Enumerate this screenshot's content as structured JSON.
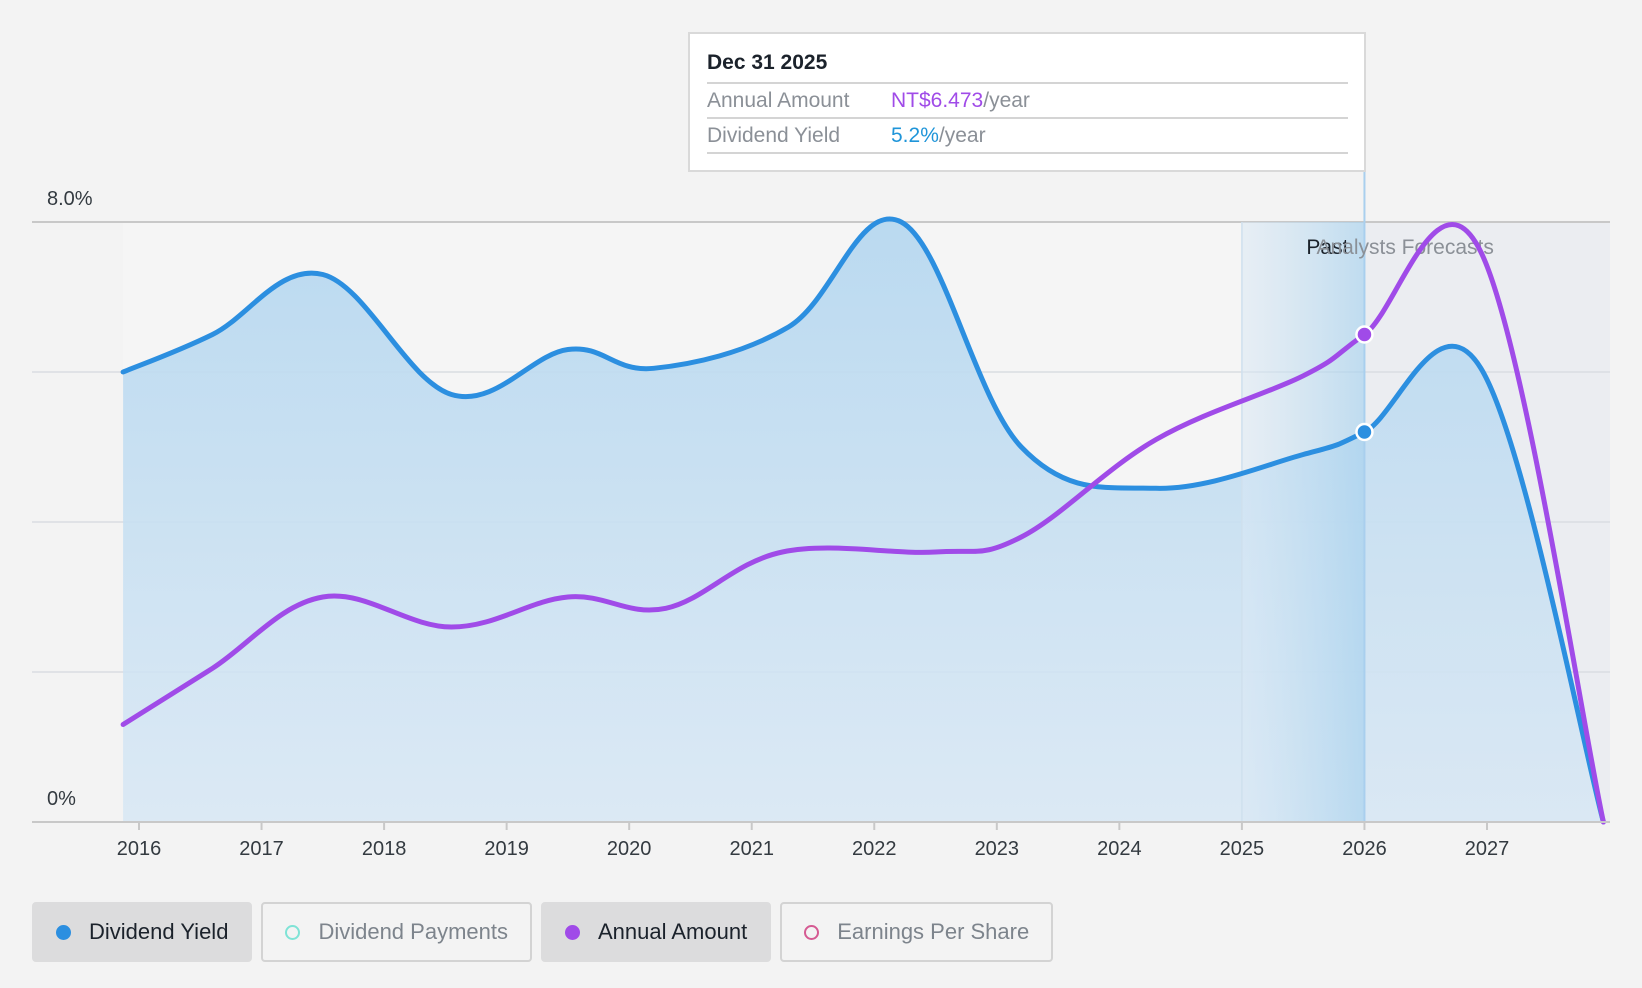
{
  "chart_data": {
    "type": "area",
    "y_axis": {
      "top_label": "8.0%",
      "bottom_label": "0%",
      "ylim": [
        0,
        8
      ]
    },
    "x_ticks": [
      "2016",
      "2017",
      "2018",
      "2019",
      "2020",
      "2021",
      "2022",
      "2023",
      "2024",
      "2025",
      "2026",
      "2027"
    ],
    "xlim": [
      2015.35,
      2027.95
    ],
    "regions": {
      "past_label": "Past",
      "forecast_label": "Analysts Forecasts",
      "past_start": 2025.0,
      "divider": 2026.0
    },
    "series": [
      {
        "name": "Dividend Yield",
        "color": "#2c8fe0",
        "points": [
          [
            2015.87,
            6.0
          ],
          [
            2016.6,
            6.5
          ],
          [
            2017.5,
            7.3
          ],
          [
            2018.55,
            5.7
          ],
          [
            2019.5,
            6.3
          ],
          [
            2020.2,
            6.05
          ],
          [
            2021.3,
            6.6
          ],
          [
            2022.22,
            8.0
          ],
          [
            2023.2,
            5.0
          ],
          [
            2024.3,
            4.45
          ],
          [
            2025.5,
            4.9
          ],
          [
            2026.0,
            5.2
          ],
          [
            2026.95,
            6.05
          ],
          [
            2027.95,
            0.0
          ]
        ]
      },
      {
        "name": "Annual Amount",
        "color": "#a04be8",
        "points": [
          [
            2015.87,
            1.3
          ],
          [
            2016.6,
            2.05
          ],
          [
            2017.5,
            3.0
          ],
          [
            2018.55,
            2.6
          ],
          [
            2019.5,
            3.0
          ],
          [
            2020.3,
            2.85
          ],
          [
            2021.25,
            3.6
          ],
          [
            2022.5,
            3.6
          ],
          [
            2023.2,
            3.8
          ],
          [
            2024.3,
            5.1
          ],
          [
            2025.5,
            5.95
          ],
          [
            2026.0,
            6.5
          ],
          [
            2026.95,
            7.6
          ],
          [
            2027.95,
            0.0
          ]
        ]
      }
    ],
    "highlight": {
      "x": 2026.0,
      "dividend_yield": 5.2,
      "annual_amount": 6.5
    }
  },
  "tooltip": {
    "date": "Dec 31 2025",
    "rows": [
      {
        "key": "Annual Amount",
        "value": "NT$6.473",
        "unit": "/year"
      },
      {
        "key": "Dividend Yield",
        "value": "5.2%",
        "unit": "/year"
      }
    ]
  },
  "legend": [
    {
      "label": "Dividend Yield",
      "color": "#2c8fe0",
      "active": true
    },
    {
      "label": "Dividend Payments",
      "color": "#7fe3d6",
      "active": false
    },
    {
      "label": "Annual Amount",
      "color": "#a04be8",
      "active": true
    },
    {
      "label": "Earnings Per Share",
      "color": "#d55a92",
      "active": false
    }
  ]
}
